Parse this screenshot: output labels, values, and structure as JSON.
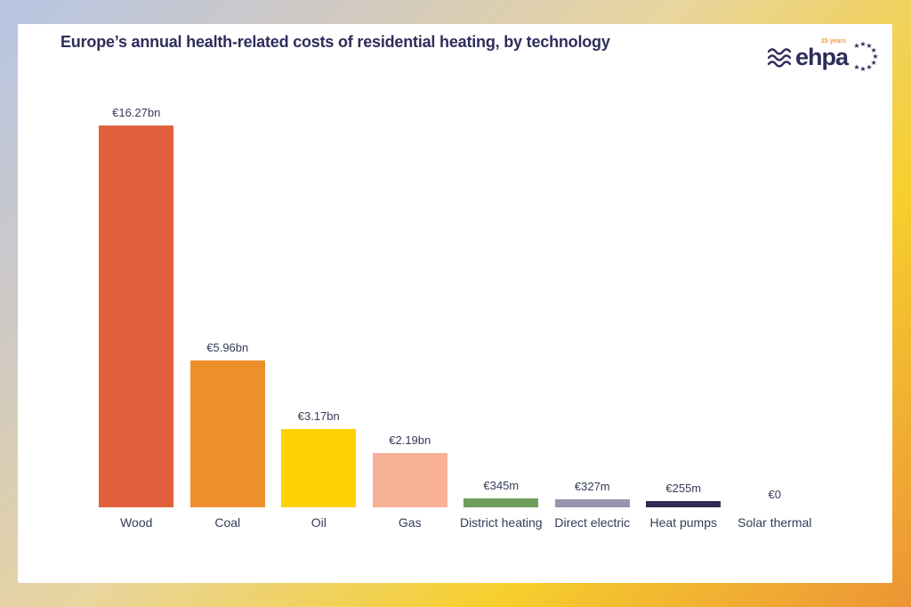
{
  "chart": {
    "title": "Europe’s annual health-related costs of residential heating, by technology"
  },
  "logo": {
    "text": "ehpa",
    "years_label": "25 years"
  },
  "colors": {
    "title_text": "#2f2d5b",
    "label_text": "#353c5a",
    "panel_background": "#ffffff",
    "logo_years_orange": "#f09d3c",
    "frame_gradient": [
      "#b7c6e4",
      "#cfc9c4",
      "#e9d59e",
      "#f6cf2e",
      "#ec9435"
    ]
  },
  "chart_data": {
    "type": "bar",
    "title": "Europe’s annual health-related costs of residential heating, by technology",
    "categories": [
      "Wood",
      "Coal",
      "Oil",
      "Gas",
      "District heating",
      "Direct electric",
      "Heat pumps",
      "Solar thermal"
    ],
    "values_eur_bn": [
      16.27,
      5.96,
      3.17,
      2.19,
      0.345,
      0.327,
      0.255,
      0
    ],
    "value_labels": [
      "€16.27bn",
      "€5.96bn",
      "€3.17bn",
      "€2.19bn",
      "€345m",
      "€327m",
      "€255m",
      "€0"
    ],
    "bar_colors": [
      "#e0613c",
      "#ec8f2c",
      "#ffd204",
      "#f8b096",
      "#6f9e5c",
      "#9795ac",
      "#2e2c52",
      "#cccccc"
    ],
    "xlabel": "",
    "ylabel": "",
    "ylim": [
      0,
      16.27
    ],
    "grid": false,
    "legend": false,
    "currency": "EUR"
  }
}
